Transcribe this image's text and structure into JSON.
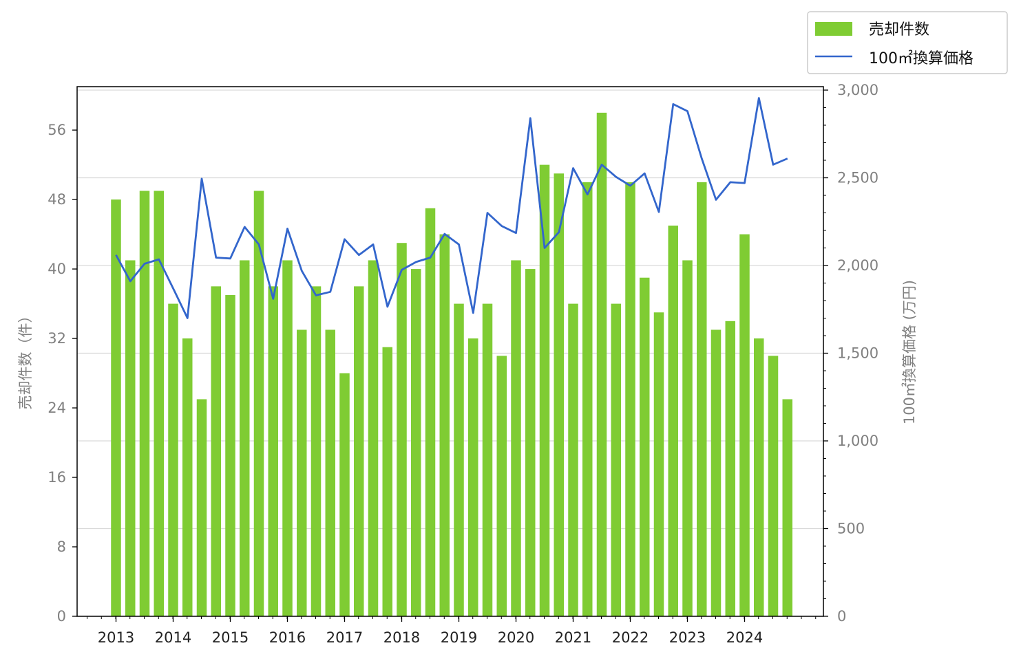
{
  "chart_data": {
    "type": "bar",
    "x_ticks": [
      "2013",
      "2014",
      "2015",
      "2016",
      "2017",
      "2018",
      "2019",
      "2020",
      "2021",
      "2022",
      "2023",
      "2024"
    ],
    "series": [
      {
        "name": "売却件数",
        "type": "bar",
        "axis": "left",
        "color": "#7fcc33",
        "values": [
          48,
          41,
          49,
          49,
          36,
          32,
          25,
          38,
          37,
          41,
          49,
          38,
          41,
          33,
          38,
          33,
          28,
          38,
          41,
          31,
          43,
          40,
          47,
          44,
          36,
          32,
          36,
          30,
          41,
          40,
          52,
          51,
          36,
          50,
          58,
          36,
          50,
          39,
          35,
          45,
          41,
          50,
          33,
          34,
          44,
          32,
          30,
          25
        ]
      },
      {
        "name": "100㎡換算価格",
        "type": "line",
        "axis": "right",
        "color": "#3366cc",
        "values": [
          2060,
          1910,
          2010,
          2035,
          1870,
          1700,
          2495,
          2045,
          2040,
          2220,
          2120,
          1810,
          2210,
          1970,
          1830,
          1850,
          2150,
          2060,
          2120,
          1765,
          1975,
          2020,
          2045,
          2180,
          2120,
          1730,
          2300,
          2225,
          2185,
          2840,
          2100,
          2190,
          2555,
          2405,
          2575,
          2505,
          2455,
          2525,
          2305,
          2920,
          2880,
          2610,
          2375,
          2475,
          2470,
          2955,
          2575,
          2610
        ]
      }
    ],
    "left_axis": {
      "label": "売却件数（件）",
      "ticks": [
        "0",
        "8",
        "16",
        "24",
        "32",
        "40",
        "48",
        "56"
      ],
      "ylim": [
        0,
        61
      ]
    },
    "right_axis": {
      "label": "100㎡換算価格 (万円)",
      "ticks": [
        "0",
        "500",
        "1,000",
        "1,500",
        "2,000",
        "2,500",
        "3,000"
      ],
      "ylim": [
        0,
        3000
      ]
    },
    "legend": {
      "placement": "top-right",
      "entries": [
        "売却件数",
        "100㎡換算価格"
      ]
    },
    "grid": "horizontal (right axis)"
  }
}
